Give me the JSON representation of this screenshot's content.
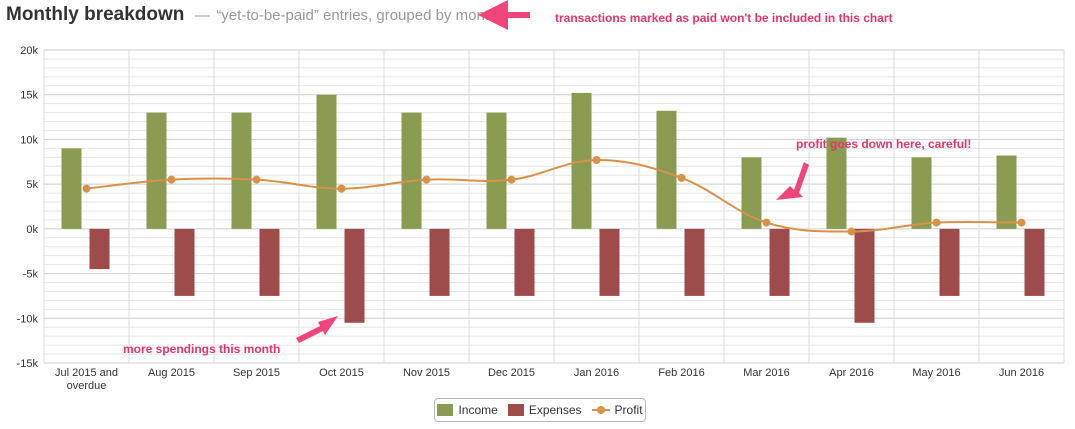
{
  "header": {
    "title": "Monthly breakdown",
    "separator": "—",
    "subtitle": "“yet-to-be-paid” entries, grouped by month"
  },
  "chart_data": {
    "type": "bar",
    "categories": [
      "Jul 2015 and overdue",
      "Aug 2015",
      "Sep 2015",
      "Oct 2015",
      "Nov 2015",
      "Dec 2015",
      "Jan 2016",
      "Feb 2016",
      "Mar 2016",
      "Apr 2016",
      "May 2016",
      "Jun 2016"
    ],
    "category_lines": [
      [
        "Jul 2015 and",
        "overdue"
      ],
      [
        "Aug 2015"
      ],
      [
        "Sep 2015"
      ],
      [
        "Oct 2015"
      ],
      [
        "Nov 2015"
      ],
      [
        "Dec 2015"
      ],
      [
        "Jan 2016"
      ],
      [
        "Feb 2016"
      ],
      [
        "Mar 2016"
      ],
      [
        "Apr 2016"
      ],
      [
        "May 2016"
      ],
      [
        "Jun 2016"
      ]
    ],
    "series": [
      {
        "name": "Income",
        "kind": "bar",
        "color": "#8a9b52",
        "values": [
          9000,
          13000,
          13000,
          15000,
          13000,
          13000,
          15200,
          13200,
          8000,
          10200,
          8000,
          8200
        ]
      },
      {
        "name": "Expenses",
        "kind": "bar",
        "color": "#9e4b4b",
        "values": [
          -4500,
          -7500,
          -7500,
          -10500,
          -7500,
          -7500,
          -7500,
          -7500,
          -7500,
          -10500,
          -7500,
          -7500
        ]
      },
      {
        "name": "Profit",
        "kind": "line",
        "color": "#d9914a",
        "values": [
          4500,
          5500,
          5500,
          4500,
          5500,
          5500,
          7700,
          5700,
          700,
          -300,
          700,
          700
        ]
      }
    ],
    "ylim": [
      -15000,
      20000
    ],
    "yticks": [
      -15000,
      -10000,
      -5000,
      0,
      5000,
      10000,
      15000,
      20000
    ],
    "ytick_labels": [
      "-15k",
      "-10k",
      "-5k",
      "0k",
      "5k",
      "10k",
      "15k",
      "20k"
    ],
    "grid": true,
    "legend": "bottom-center",
    "annotations": [
      {
        "text": "transactions marked as paid won't be included in this chart"
      },
      {
        "text": "profit goes down here, careful!"
      },
      {
        "text": "more spendings this month"
      }
    ]
  }
}
